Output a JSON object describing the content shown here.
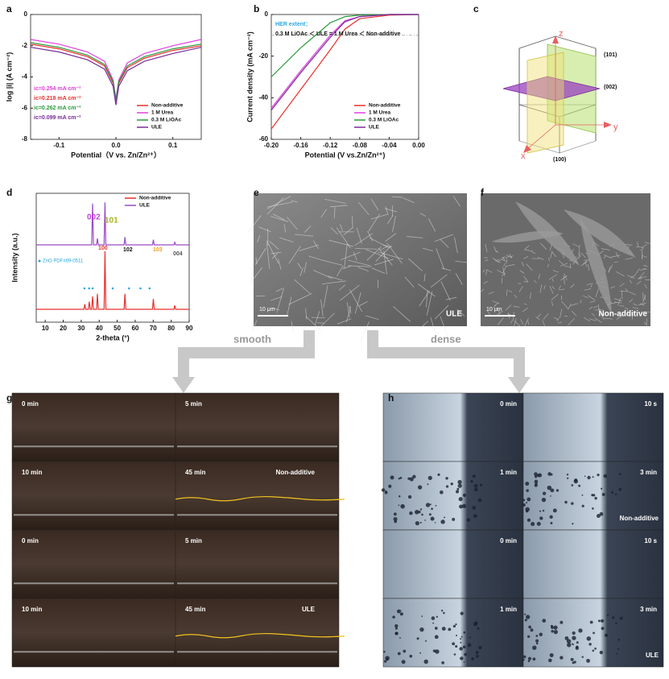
{
  "chart_data": [
    {
      "type": "line",
      "xlabel": "Potential（V vs. Zn/Zn²⁺）",
      "ylabel": "log |i| (A cm⁻²)",
      "x": [
        -0.15,
        -0.1,
        -0.05,
        -0.02,
        -0.005,
        0,
        0.005,
        0.02,
        0.05,
        0.1,
        0.15
      ],
      "series": [
        {
          "name": "Non-additive",
          "color": "#e8302c",
          "values": [
            -1.9,
            -2.2,
            -2.7,
            -3.3,
            -4.4,
            -5.6,
            -4.4,
            -3.4,
            -2.8,
            -2.3,
            -2.0
          ]
        },
        {
          "name": "1 M Urea",
          "color": "#e040e0",
          "values": [
            -1.6,
            -1.9,
            -2.4,
            -3.0,
            -4.2,
            -5.4,
            -4.2,
            -3.1,
            -2.5,
            -2.0,
            -1.6
          ]
        },
        {
          "name": "0.3 M LiOAc",
          "color": "#2a9a3a",
          "values": [
            -1.8,
            -2.1,
            -2.6,
            -3.2,
            -4.3,
            -5.5,
            -4.3,
            -3.3,
            -2.7,
            -2.2,
            -1.9
          ]
        },
        {
          "name": "ULE",
          "color": "#7a2a9a",
          "values": [
            -2.1,
            -2.4,
            -2.9,
            -3.5,
            -4.6,
            -5.8,
            -4.6,
            -3.6,
            -3.0,
            -2.5,
            -2.1
          ]
        }
      ],
      "xlim": [
        -0.15,
        0.15
      ],
      "xticks": [
        -0.1,
        {
          "value": 0,
          "label": "0.0"
        },
        0.1
      ],
      "ylim": [
        -8,
        0
      ],
      "yticks": [
        0,
        -2,
        -4,
        -6,
        -8
      ],
      "legend": "lower right",
      "annotations": [
        {
          "text": "ic=0.254 mA cm⁻²",
          "color": "#e040e0"
        },
        {
          "text": "ic=0.218 mA cm⁻²",
          "color": "#e8302c"
        },
        {
          "text": "ic=0.262 mA cm⁻²",
          "color": "#2a9a3a"
        },
        {
          "text": "ic=0.099 mA cm⁻²",
          "color": "#7a2a9a"
        }
      ]
    },
    {
      "type": "line",
      "xlabel": "Potential (V vs.Zn/Zn²⁺)",
      "ylabel": "Current density (mA cm⁻²)",
      "x": [
        -0.2,
        -0.16,
        -0.12,
        -0.1,
        -0.08,
        -0.04,
        0
      ],
      "series": [
        {
          "name": "Non-additive",
          "color": "#e8302c",
          "values": [
            -55,
            -36,
            -17,
            -7,
            -2,
            -0.3,
            0
          ]
        },
        {
          "name": "1 M Urea",
          "color": "#e040e0",
          "values": [
            -45,
            -27,
            -10,
            -3,
            -1,
            0,
            0
          ]
        },
        {
          "name": "0.3 M LiOAc",
          "color": "#2a9a3a",
          "values": [
            -30,
            -16,
            -4,
            -1,
            -0.3,
            0,
            0
          ]
        },
        {
          "name": "ULE",
          "color": "#7a2a9a",
          "values": [
            -46,
            -28,
            -11,
            -3.5,
            -1,
            0,
            0
          ]
        }
      ],
      "xlim": [
        -0.2,
        0
      ],
      "xticks": [
        {
          "value": -0.2,
          "label": "-0.20"
        },
        {
          "value": -0.16,
          "label": "-0.16"
        },
        {
          "value": -0.12,
          "label": "-0.12"
        },
        {
          "value": -0.08,
          "label": "-0.08"
        },
        {
          "value": -0.04,
          "label": "-0.04"
        },
        {
          "value": 0,
          "label": "0.00"
        }
      ],
      "ylim": [
        -60,
        0
      ],
      "yticks": [
        0,
        -20,
        -40,
        -60
      ],
      "hline": -10,
      "legend": "lower right",
      "annotations": [
        {
          "text": "HER extent：",
          "color": "#29a8e0"
        },
        {
          "text": "0.3 M LiOAc ＜ ULE = 1 M Urea ＜ Non-additive",
          "color": "#111111"
        }
      ]
    },
    {
      "type": "line",
      "xlabel": "2-theta (°)",
      "ylabel": "Intensity (a.u.)",
      "series": [
        {
          "name": "Non-additive",
          "color": "#e8302c",
          "x": [
            5,
            31.5,
            32,
            32.5,
            34,
            34.5,
            35,
            35.8,
            36.3,
            36.8,
            38.5,
            39,
            39.5,
            42.7,
            43.2,
            43.7,
            53.8,
            54.3,
            54.8,
            69.6,
            70.1,
            70.6,
            81.5,
            82,
            82.5,
            90
          ],
          "values": [
            10,
            10,
            14,
            10,
            10,
            16,
            10,
            10,
            20,
            10,
            10,
            22,
            10,
            10,
            55,
            10,
            10,
            22,
            10,
            10,
            18,
            10,
            10,
            13,
            10,
            10
          ]
        },
        {
          "name": "ULE",
          "color": "#9a4ac8",
          "x": [
            5,
            35.8,
            36.3,
            36.8,
            38.5,
            39,
            39.5,
            42.7,
            43.2,
            43.7,
            53.8,
            54.3,
            54.8,
            69.6,
            70.1,
            70.6,
            81.5,
            82,
            82.5,
            90
          ],
          "values": [
            60,
            60,
            92,
            60,
            60,
            65,
            60,
            60,
            93,
            60,
            60,
            66,
            60,
            60,
            64,
            60,
            60,
            62,
            60,
            60
          ]
        }
      ],
      "reference": {
        "name": "ZnO PDF#89-0511",
        "color": "#29a8e0",
        "x": [
          31.8,
          34.4,
          36.3,
          47.5,
          56.6,
          62.9,
          68
        ]
      },
      "xlim": [
        5,
        90
      ],
      "xticks": [
        10,
        20,
        30,
        40,
        50,
        60,
        70,
        80,
        90
      ],
      "ylim": [
        0,
        100
      ],
      "legend": "upper right",
      "annotations": [
        {
          "text": "002",
          "color": "#c040e0"
        },
        {
          "text": "101",
          "color": "#a8b020"
        },
        {
          "text": "100",
          "color": "#e8302c"
        },
        {
          "text": "102",
          "color": "#111111"
        },
        {
          "text": "103",
          "color": "#f0a020"
        },
        {
          "text": "004",
          "color": "#555555"
        }
      ]
    }
  ],
  "figure": {
    "panel_labels": [
      "a",
      "b",
      "c",
      "d",
      "e",
      "f",
      "g",
      "h"
    ],
    "crystal": {
      "axes": [
        "z",
        "y",
        "x"
      ],
      "planes": [
        "(101)",
        "(002)",
        "(100)"
      ]
    },
    "sem": [
      {
        "scale": "10 μm",
        "label": "ULE"
      },
      {
        "scale": "10 μm",
        "label": "Non-additive"
      }
    ],
    "arrows": [
      "smooth",
      "dense"
    ],
    "g": {
      "times": [
        "0 min",
        "5 min",
        "10 min",
        "45 min",
        "0 min",
        "5 min",
        "10 min",
        "45 min"
      ],
      "labels": [
        "Non-additive",
        "ULE"
      ]
    },
    "h": {
      "times": [
        "0 min",
        "10 s",
        "1 min",
        "3 min",
        "0 min",
        "10 s",
        "1 min",
        "3 min"
      ],
      "labels": [
        "Non-additive",
        "ULE"
      ]
    }
  }
}
